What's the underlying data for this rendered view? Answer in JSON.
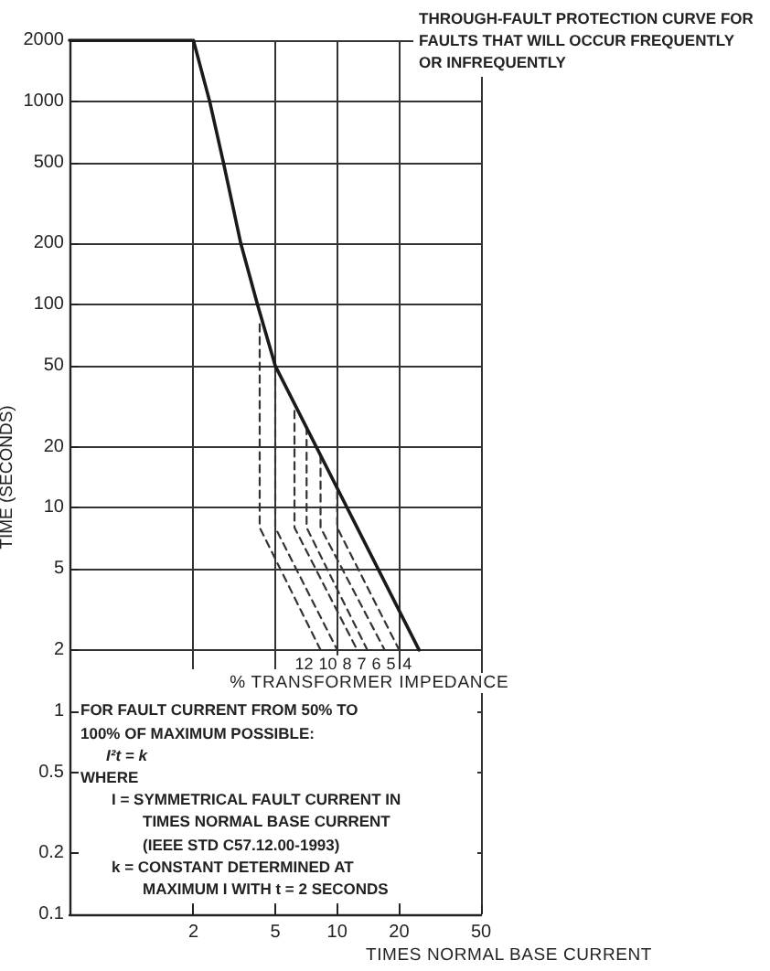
{
  "chart_data": {
    "type": "line",
    "title": "THROUGH-FAULT PROTECTION CURVE FOR FAULTS THAT WILL OCCUR FREQUENTLY OR INFREQUENTLY",
    "xlabel": "TIMES NORMAL BASE CURRENT",
    "ylabel": "TIME (SECONDS)",
    "log": "xy",
    "xlim": [
      0.5,
      50
    ],
    "ylim": [
      0.1,
      2000
    ],
    "xticks": [
      2,
      5,
      10,
      20,
      50
    ],
    "yticks": [
      0.1,
      0.2,
      0.5,
      1,
      2,
      5,
      10,
      20,
      50,
      100,
      200,
      500,
      1000,
      2000
    ],
    "grid": true,
    "legend": false,
    "marker": "none",
    "annotations": [
      "% TRANSFORMER IMPEDANCE",
      "FOR FAULT CURRENT FROM 50% TO",
      "100% OF MAXIMUM POSSIBLE:",
      "I²t = k",
      "WHERE",
      "I = SYMMETRICAL FAULT CURRENT IN",
      "TIMES NORMAL BASE CURRENT",
      "(IEEE STD C57.12.00-1993)",
      "k = CONSTANT DETERMINED AT",
      "MAXIMUM I WITH t = 2 SECONDS"
    ],
    "series": [
      {
        "name": "12",
        "color": "#333333",
        "line_style": "dashed",
        "x": [
          4.2,
          4.2,
          8.3
        ],
        "values": [
          80,
          8,
          2
        ]
      },
      {
        "name": "10",
        "color": "#333333",
        "line_style": "dashed",
        "x": [
          5,
          5,
          10
        ],
        "values": [
          50,
          8,
          2
        ]
      },
      {
        "name": "8",
        "color": "#333333",
        "line_style": "dashed",
        "x": [
          6.2,
          6.2,
          12.5
        ],
        "values": [
          30,
          8,
          2
        ]
      },
      {
        "name": "7",
        "color": "#333333",
        "line_style": "dashed",
        "x": [
          7.1,
          7.1,
          14
        ],
        "values": [
          25,
          8,
          2
        ]
      },
      {
        "name": "6",
        "color": "#333333",
        "line_style": "dashed",
        "x": [
          8.3,
          8.3,
          17
        ],
        "values": [
          18,
          8,
          2
        ]
      },
      {
        "name": "5",
        "color": "#333333",
        "line_style": "dashed",
        "x": [
          10,
          10,
          20
        ],
        "values": [
          12,
          8,
          2
        ]
      },
      {
        "name": "4",
        "color": "#1a1a1a",
        "line_style": "solid",
        "x": [
          0.5,
          2,
          2.4,
          2.8,
          3.4,
          4.1,
          5,
          25
        ],
        "values": [
          2000,
          2000,
          1000,
          500,
          200,
          100,
          50,
          2
        ]
      }
    ]
  }
}
